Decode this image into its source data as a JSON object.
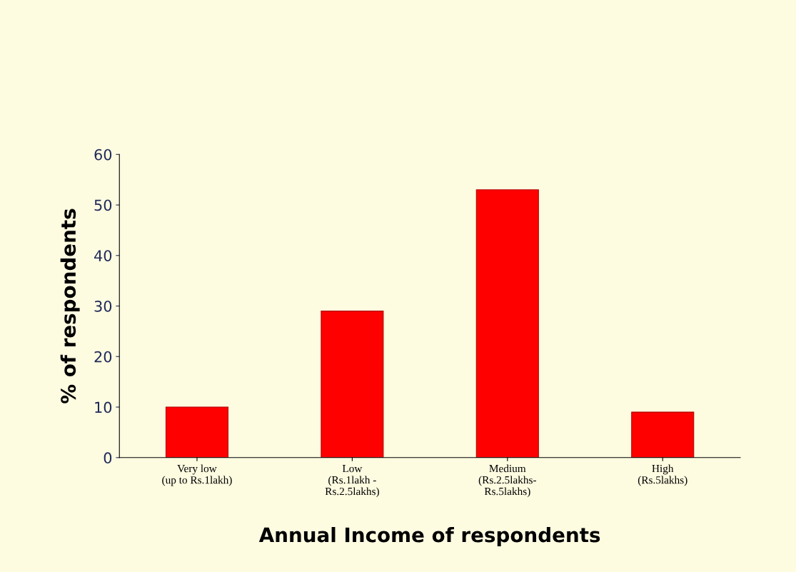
{
  "chart_data": {
    "type": "bar",
    "categories": [
      "Very low\n(up to Rs.1lakh)",
      "Low\n(Rs.1lakh -\nRs.2.5lakhs)",
      "Medium\n(Rs.2.5lakhs-\nRs.5lakhs)",
      "High\n(Rs.5lakhs)"
    ],
    "values": [
      10,
      29,
      53,
      9
    ],
    "color": "#ff0000",
    "xlabel": "Annual Income of respondents",
    "ylabel": "% of respondents",
    "ylim": [
      0,
      60
    ],
    "yticks": [
      0,
      10,
      20,
      30,
      40,
      50,
      60
    ],
    "grid": false
  }
}
